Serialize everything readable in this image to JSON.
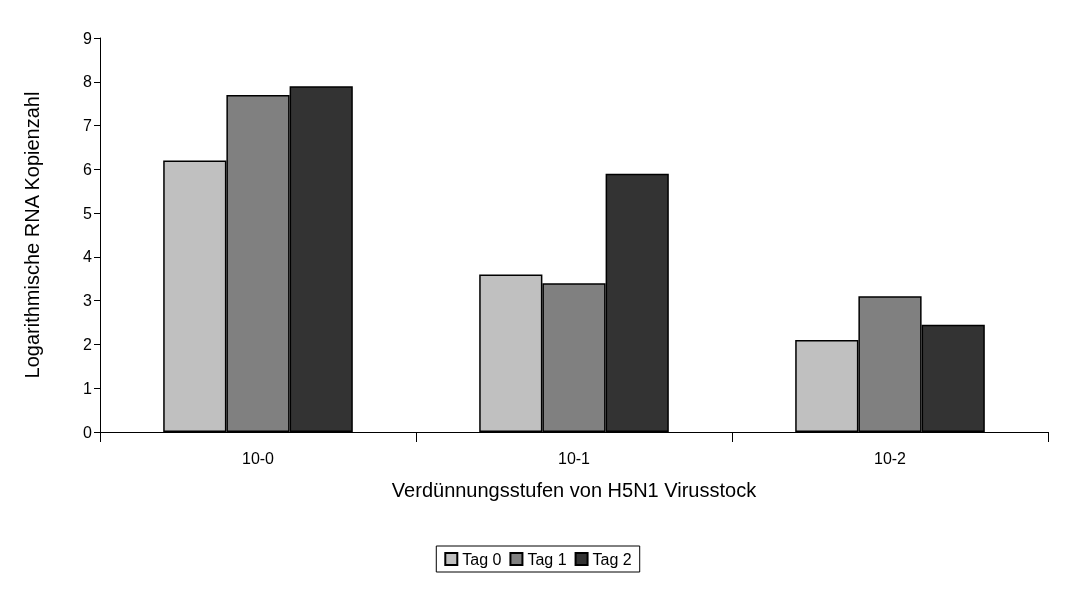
{
  "chart_data": {
    "type": "bar",
    "xlabel": "Verdünnungsstufen von H5N1 Virusstock",
    "ylabel": "Logarithmische RNA Kopienzahl",
    "categories": [
      "10-0",
      "10-1",
      "10-2"
    ],
    "series": [
      {
        "name": "Tag 0",
        "color": "#c0c0c0",
        "values": [
          6.2,
          3.6,
          2.1
        ]
      },
      {
        "name": "Tag 1",
        "color": "#808080",
        "values": [
          7.7,
          3.4,
          3.1
        ]
      },
      {
        "name": "Tag 2",
        "color": "#333333",
        "values": [
          7.9,
          5.9,
          2.45
        ]
      }
    ],
    "ylim": [
      0,
      9
    ],
    "yticks": [
      0,
      1,
      2,
      3,
      4,
      5,
      6,
      7,
      8,
      9
    ],
    "grid": false,
    "legend": "bottom"
  }
}
